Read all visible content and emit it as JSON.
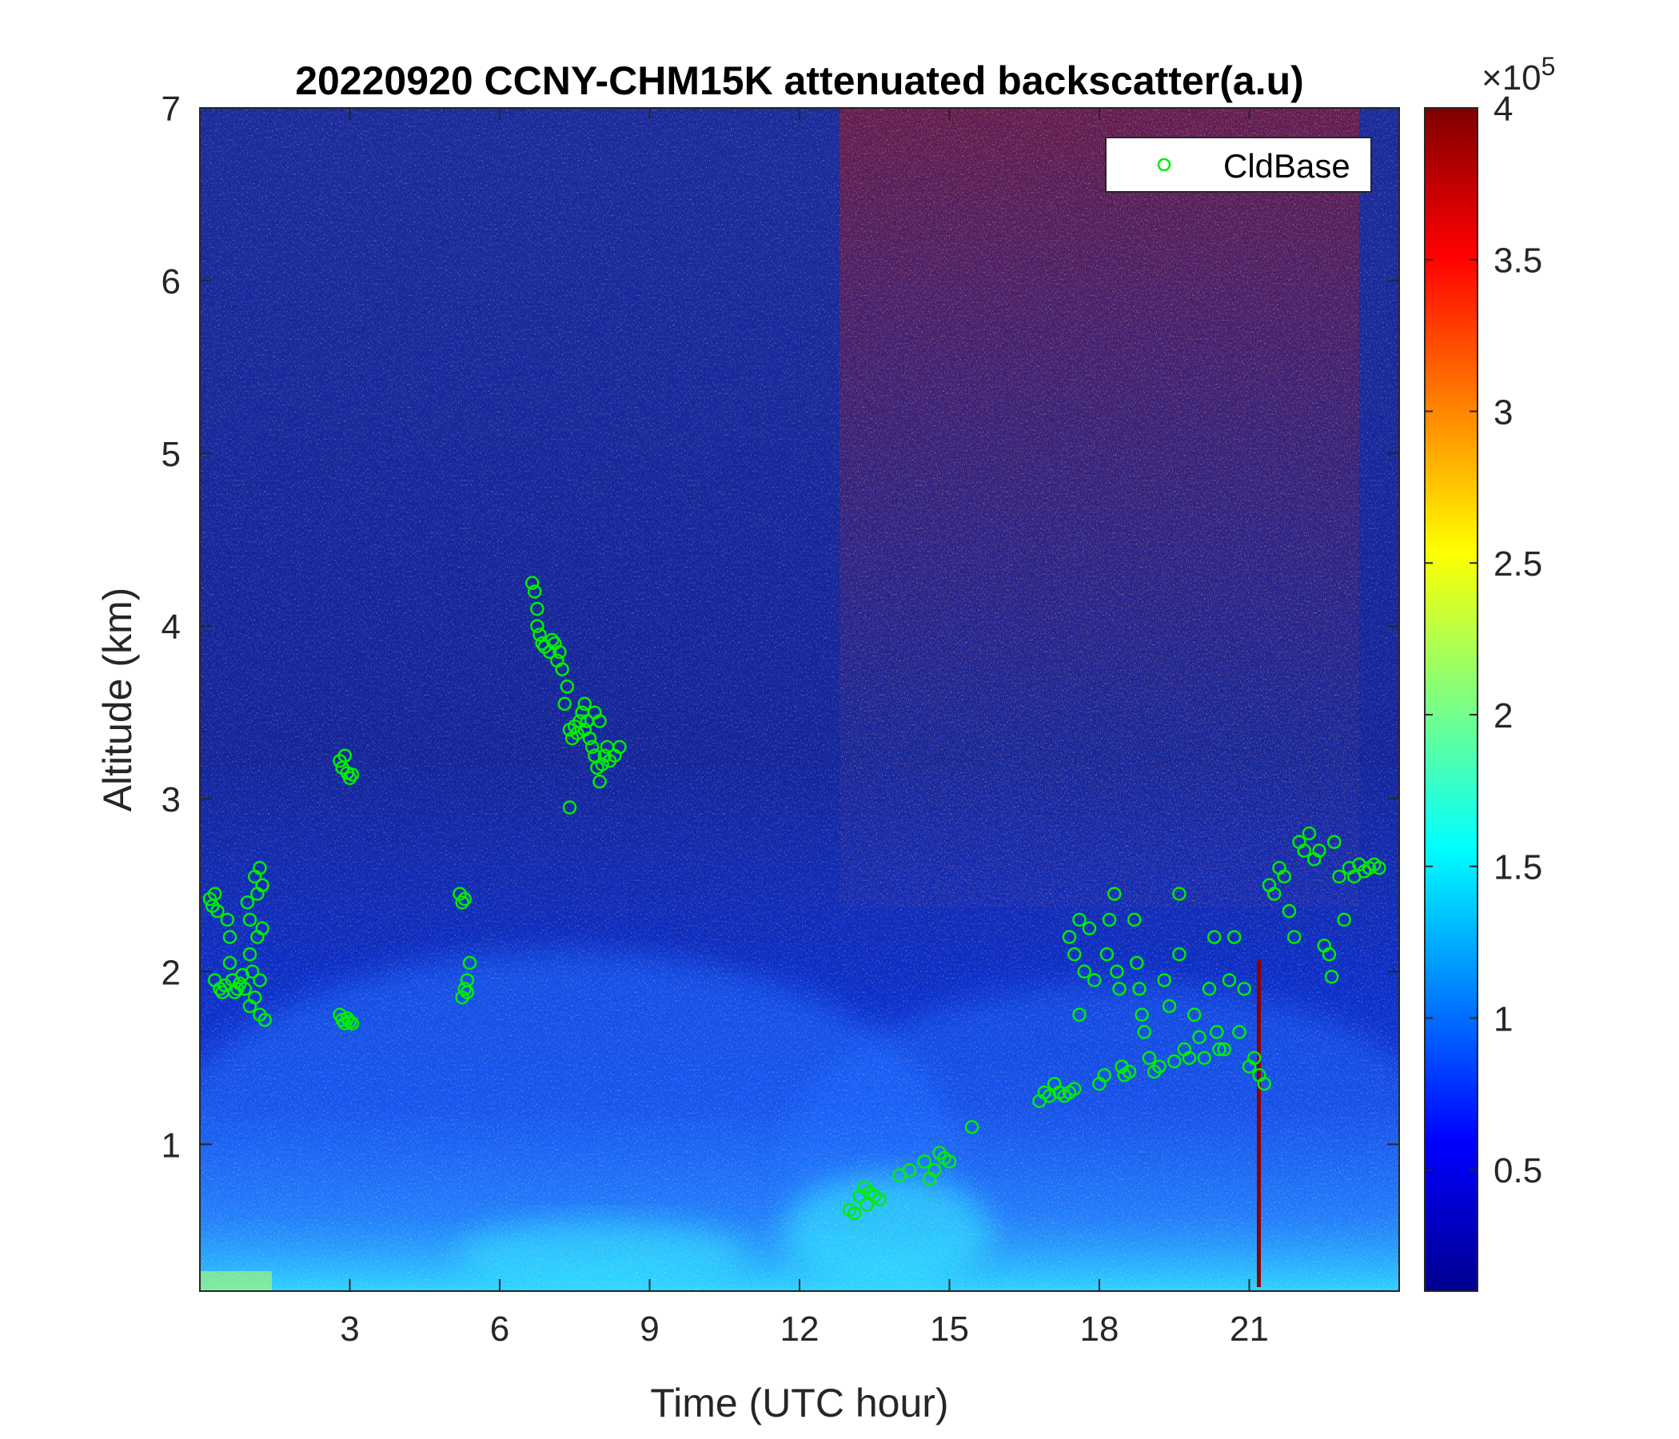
{
  "chart_data": {
    "type": "heatmap",
    "title": "20220920 CCNY-CHM15K attenuated backscatter(a.u)",
    "xlabel": "Time (UTC hour)",
    "ylabel": "Altitude (km)",
    "xlim": [
      0,
      24
    ],
    "ylim": [
      0.15,
      7
    ],
    "xticks": [
      3,
      6,
      9,
      12,
      15,
      18,
      21
    ],
    "xtick_labels": [
      "3",
      "6",
      "9",
      "12",
      "15",
      "18",
      "21"
    ],
    "yticks": [
      1,
      2,
      3,
      4,
      5,
      6,
      7
    ],
    "ytick_labels": [
      "1",
      "2",
      "3",
      "4",
      "5",
      "6",
      "7"
    ],
    "colorbar": {
      "colormap": "jet",
      "range": [
        0.1,
        4
      ],
      "ticks": [
        0.5,
        1,
        1.5,
        2,
        2.5,
        3,
        3.5,
        4
      ],
      "tick_labels": [
        "0.5",
        "1",
        "1.5",
        "2",
        "2.5",
        "3",
        "3.5",
        "4"
      ],
      "exponent_prefix": "×10",
      "exponent": "5"
    },
    "legend": {
      "placement": "top-right",
      "entries": [
        "CldBase"
      ]
    },
    "series": [
      {
        "name": "CldBase",
        "type": "scatter",
        "marker": "circle",
        "color": "#00ee00",
        "points": [
          [
            0.2,
            2.42
          ],
          [
            0.25,
            2.38
          ],
          [
            0.3,
            2.45
          ],
          [
            0.35,
            2.35
          ],
          [
            0.3,
            1.95
          ],
          [
            0.4,
            1.9
          ],
          [
            0.45,
            1.88
          ],
          [
            0.5,
            1.92
          ],
          [
            0.55,
            2.3
          ],
          [
            0.6,
            2.2
          ],
          [
            0.6,
            2.05
          ],
          [
            0.65,
            1.95
          ],
          [
            0.7,
            1.88
          ],
          [
            0.75,
            1.9
          ],
          [
            0.8,
            1.93
          ],
          [
            0.85,
            1.98
          ],
          [
            0.9,
            1.9
          ],
          [
            0.95,
            2.4
          ],
          [
            1.0,
            2.3
          ],
          [
            1.0,
            2.1
          ],
          [
            1.05,
            2.0
          ],
          [
            1.1,
            1.85
          ],
          [
            1.1,
            2.55
          ],
          [
            1.15,
            2.45
          ],
          [
            1.15,
            2.2
          ],
          [
            1.2,
            1.75
          ],
          [
            1.2,
            2.6
          ],
          [
            1.25,
            2.5
          ],
          [
            1.25,
            2.25
          ],
          [
            1.3,
            1.72
          ],
          [
            1.2,
            1.95
          ],
          [
            1.0,
            1.8
          ],
          [
            2.8,
            3.22
          ],
          [
            2.85,
            3.18
          ],
          [
            2.9,
            3.25
          ],
          [
            2.95,
            3.15
          ],
          [
            3.0,
            3.12
          ],
          [
            3.05,
            3.14
          ],
          [
            2.8,
            1.75
          ],
          [
            2.85,
            1.72
          ],
          [
            2.9,
            1.7
          ],
          [
            2.95,
            1.73
          ],
          [
            3.0,
            1.71
          ],
          [
            3.05,
            1.7
          ],
          [
            5.2,
            2.45
          ],
          [
            5.25,
            2.4
          ],
          [
            5.3,
            2.42
          ],
          [
            5.25,
            1.85
          ],
          [
            5.3,
            1.9
          ],
          [
            5.35,
            1.95
          ],
          [
            5.4,
            2.05
          ],
          [
            5.35,
            1.88
          ],
          [
            6.65,
            4.25
          ],
          [
            6.7,
            4.2
          ],
          [
            6.75,
            4.1
          ],
          [
            6.75,
            4.0
          ],
          [
            6.8,
            3.95
          ],
          [
            6.85,
            3.9
          ],
          [
            6.9,
            3.88
          ],
          [
            7.0,
            3.85
          ],
          [
            7.05,
            3.92
          ],
          [
            7.1,
            3.9
          ],
          [
            7.15,
            3.8
          ],
          [
            7.2,
            3.85
          ],
          [
            7.25,
            3.75
          ],
          [
            7.3,
            3.55
          ],
          [
            7.35,
            3.65
          ],
          [
            7.4,
            3.4
          ],
          [
            7.45,
            3.35
          ],
          [
            7.5,
            3.42
          ],
          [
            7.55,
            3.38
          ],
          [
            7.6,
            3.45
          ],
          [
            7.65,
            3.5
          ],
          [
            7.7,
            3.4
          ],
          [
            7.75,
            3.45
          ],
          [
            7.8,
            3.35
          ],
          [
            7.85,
            3.3
          ],
          [
            7.9,
            3.25
          ],
          [
            7.95,
            3.18
          ],
          [
            8.0,
            3.1
          ],
          [
            8.05,
            3.2
          ],
          [
            8.1,
            3.25
          ],
          [
            8.15,
            3.3
          ],
          [
            8.2,
            3.22
          ],
          [
            8.3,
            3.25
          ],
          [
            8.4,
            3.3
          ],
          [
            7.4,
            2.95
          ],
          [
            8.0,
            3.45
          ],
          [
            7.7,
            3.55
          ],
          [
            7.9,
            3.5
          ],
          [
            13.0,
            0.62
          ],
          [
            13.1,
            0.6
          ],
          [
            13.2,
            0.7
          ],
          [
            13.3,
            0.75
          ],
          [
            13.35,
            0.65
          ],
          [
            13.4,
            0.72
          ],
          [
            13.5,
            0.7
          ],
          [
            13.6,
            0.68
          ],
          [
            14.0,
            0.82
          ],
          [
            14.2,
            0.85
          ],
          [
            14.5,
            0.9
          ],
          [
            14.6,
            0.8
          ],
          [
            14.7,
            0.85
          ],
          [
            14.8,
            0.95
          ],
          [
            14.9,
            0.92
          ],
          [
            15.0,
            0.9
          ],
          [
            15.45,
            1.1
          ],
          [
            16.8,
            1.25
          ],
          [
            16.9,
            1.3
          ],
          [
            17.0,
            1.28
          ],
          [
            17.1,
            1.35
          ],
          [
            17.2,
            1.3
          ],
          [
            17.3,
            1.28
          ],
          [
            17.4,
            1.3
          ],
          [
            17.5,
            1.32
          ],
          [
            17.4,
            2.2
          ],
          [
            17.5,
            2.1
          ],
          [
            17.6,
            2.3
          ],
          [
            17.7,
            2.0
          ],
          [
            17.8,
            2.25
          ],
          [
            17.9,
            1.95
          ],
          [
            17.6,
            1.75
          ],
          [
            18.0,
            1.35
          ],
          [
            18.1,
            1.4
          ],
          [
            18.15,
            2.1
          ],
          [
            18.2,
            2.3
          ],
          [
            18.3,
            2.45
          ],
          [
            18.35,
            2.0
          ],
          [
            18.4,
            1.9
          ],
          [
            18.45,
            1.45
          ],
          [
            18.5,
            1.4
          ],
          [
            18.6,
            1.42
          ],
          [
            18.7,
            2.3
          ],
          [
            18.75,
            2.05
          ],
          [
            18.8,
            1.9
          ],
          [
            18.85,
            1.75
          ],
          [
            18.9,
            1.65
          ],
          [
            19.0,
            1.5
          ],
          [
            19.1,
            1.42
          ],
          [
            19.2,
            1.45
          ],
          [
            19.3,
            1.95
          ],
          [
            19.4,
            1.8
          ],
          [
            19.5,
            1.48
          ],
          [
            19.6,
            2.1
          ],
          [
            19.6,
            2.45
          ],
          [
            19.7,
            1.55
          ],
          [
            19.8,
            1.5
          ],
          [
            19.9,
            1.75
          ],
          [
            20.0,
            1.62
          ],
          [
            20.1,
            1.5
          ],
          [
            20.2,
            1.9
          ],
          [
            20.3,
            2.2
          ],
          [
            20.35,
            1.65
          ],
          [
            20.4,
            1.55
          ],
          [
            20.5,
            1.55
          ],
          [
            20.6,
            1.95
          ],
          [
            20.7,
            2.2
          ],
          [
            20.8,
            1.65
          ],
          [
            20.9,
            1.9
          ],
          [
            21.0,
            1.45
          ],
          [
            21.1,
            1.5
          ],
          [
            21.2,
            1.4
          ],
          [
            21.3,
            1.35
          ],
          [
            21.4,
            2.5
          ],
          [
            21.5,
            2.45
          ],
          [
            21.6,
            2.6
          ],
          [
            21.7,
            2.55
          ],
          [
            21.8,
            2.35
          ],
          [
            21.9,
            2.2
          ],
          [
            22.0,
            2.75
          ],
          [
            22.1,
            2.7
          ],
          [
            22.2,
            2.8
          ],
          [
            22.3,
            2.65
          ],
          [
            22.4,
            2.7
          ],
          [
            22.5,
            2.15
          ],
          [
            22.6,
            2.1
          ],
          [
            22.65,
            1.97
          ],
          [
            22.7,
            2.75
          ],
          [
            22.8,
            2.55
          ],
          [
            22.9,
            2.3
          ],
          [
            23.0,
            2.6
          ],
          [
            23.1,
            2.55
          ],
          [
            23.2,
            2.62
          ],
          [
            23.3,
            2.58
          ],
          [
            23.4,
            2.6
          ],
          [
            23.5,
            2.62
          ],
          [
            23.6,
            2.6
          ]
        ]
      }
    ]
  }
}
